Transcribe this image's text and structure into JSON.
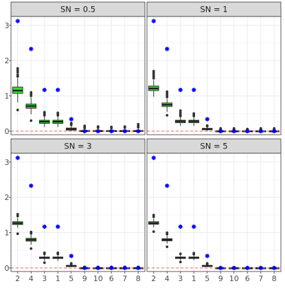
{
  "chart_data": {
    "type": "boxplot",
    "facet_variable": "SN",
    "categories": [
      "2",
      "4",
      "3",
      "1",
      "5",
      "9",
      "10",
      "6",
      "7",
      "8"
    ],
    "ylim": [
      -0.1,
      3.25
    ],
    "yticks": [
      0,
      1,
      2,
      3
    ],
    "reference_line": {
      "y": 0,
      "color": "#ff6060",
      "style": "dashed"
    },
    "colors": {
      "box_highlight": "#33dd33",
      "box_default": "#ffffff",
      "true_value_marker": "#0000ff",
      "outlier": "#333333",
      "strip_bg": "#d9d9d9",
      "grid": "#ebebeb"
    },
    "highlight_categories": [
      "2",
      "4",
      "3",
      "1"
    ],
    "true_values": [
      3.12,
      2.33,
      1.17,
      1.17,
      0.34,
      0.0,
      0.0,
      0.0,
      0.0,
      0.0
    ],
    "panels": [
      {
        "strip": "SN =  0.5",
        "boxes": [
          {
            "q1": 1.07,
            "median": 1.15,
            "q3": 1.25,
            "wlow": 0.82,
            "whigh": 1.5,
            "outliers": [
              0.6,
              1.55,
              1.6,
              1.67,
              1.72,
              1.78
            ]
          },
          {
            "q1": 0.65,
            "median": 0.71,
            "q3": 0.77,
            "wlow": 0.48,
            "whigh": 0.95,
            "outliers": [
              0.3,
              1.0,
              1.05,
              1.1
            ]
          },
          {
            "q1": 0.22,
            "median": 0.27,
            "q3": 0.31,
            "wlow": 0.12,
            "whigh": 0.42,
            "outliers": [
              0.45,
              0.48,
              0.51,
              0.54
            ]
          },
          {
            "q1": 0.22,
            "median": 0.27,
            "q3": 0.31,
            "wlow": 0.12,
            "whigh": 0.42,
            "outliers": [
              0.45,
              0.48,
              0.52
            ]
          },
          {
            "q1": 0.03,
            "median": 0.06,
            "q3": 0.09,
            "wlow": 0.0,
            "whigh": 0.15,
            "outliers": [
              0.18,
              0.2,
              0.23
            ]
          },
          {
            "q1": 0.0,
            "median": 0.0,
            "q3": 0.02,
            "wlow": 0.0,
            "whigh": 0.07,
            "outliers": [
              0.09,
              0.12,
              0.15
            ]
          },
          {
            "q1": 0.0,
            "median": 0.0,
            "q3": 0.02,
            "wlow": 0.0,
            "whigh": 0.07,
            "outliers": [
              0.1,
              0.13
            ]
          },
          {
            "q1": 0.0,
            "median": 0.0,
            "q3": 0.02,
            "wlow": 0.0,
            "whigh": 0.07,
            "outliers": [
              0.09,
              0.12
            ]
          },
          {
            "q1": 0.0,
            "median": 0.0,
            "q3": 0.02,
            "wlow": 0.0,
            "whigh": 0.07,
            "outliers": [
              0.1,
              0.13
            ]
          },
          {
            "q1": 0.0,
            "median": 0.0,
            "q3": 0.02,
            "wlow": 0.0,
            "whigh": 0.07,
            "outliers": [
              0.11,
              0.15,
              0.2
            ]
          }
        ]
      },
      {
        "strip": "SN = 1",
        "boxes": [
          {
            "q1": 1.15,
            "median": 1.21,
            "q3": 1.28,
            "wlow": 0.98,
            "whigh": 1.45,
            "outliers": [
              1.5,
              1.55,
              1.6,
              1.65,
              1.7
            ]
          },
          {
            "q1": 0.7,
            "median": 0.75,
            "q3": 0.8,
            "wlow": 0.55,
            "whigh": 0.92,
            "outliers": [
              0.45,
              0.97,
              1.02,
              1.07,
              1.12
            ]
          },
          {
            "q1": 0.24,
            "median": 0.28,
            "q3": 0.31,
            "wlow": 0.15,
            "whigh": 0.4,
            "outliers": [
              0.43,
              0.47,
              0.52,
              0.58
            ]
          },
          {
            "q1": 0.24,
            "median": 0.28,
            "q3": 0.31,
            "wlow": 0.15,
            "whigh": 0.4,
            "outliers": [
              0.43,
              0.46,
              0.5
            ]
          },
          {
            "q1": 0.04,
            "median": 0.06,
            "q3": 0.08,
            "wlow": 0.0,
            "whigh": 0.12,
            "outliers": [
              0.14,
              0.16
            ]
          },
          {
            "q1": 0.0,
            "median": 0.0,
            "q3": 0.01,
            "wlow": 0.0,
            "whigh": 0.04,
            "outliers": [
              0.06,
              0.08
            ]
          },
          {
            "q1": 0.0,
            "median": 0.0,
            "q3": 0.01,
            "wlow": 0.0,
            "whigh": 0.04,
            "outliers": [
              0.06,
              0.08
            ]
          },
          {
            "q1": 0.0,
            "median": 0.0,
            "q3": 0.01,
            "wlow": 0.0,
            "whigh": 0.04,
            "outliers": [
              0.06
            ]
          },
          {
            "q1": 0.0,
            "median": 0.0,
            "q3": 0.01,
            "wlow": 0.0,
            "whigh": 0.04,
            "outliers": [
              0.06,
              0.08
            ]
          },
          {
            "q1": 0.0,
            "median": 0.0,
            "q3": 0.01,
            "wlow": 0.0,
            "whigh": 0.04,
            "outliers": [
              0.06,
              0.08
            ]
          }
        ]
      },
      {
        "strip": "SN = 3",
        "boxes": [
          {
            "q1": 1.23,
            "median": 1.27,
            "q3": 1.31,
            "wlow": 1.14,
            "whigh": 1.42,
            "outliers": [
              0.97,
              1.47,
              1.52
            ]
          },
          {
            "q1": 0.76,
            "median": 0.8,
            "q3": 0.84,
            "wlow": 0.66,
            "whigh": 0.94,
            "outliers": [
              0.55,
              0.98,
              1.02
            ]
          },
          {
            "q1": 0.27,
            "median": 0.29,
            "q3": 0.31,
            "wlow": 0.2,
            "whigh": 0.37,
            "outliers": [
              0.15,
              0.4,
              0.43
            ]
          },
          {
            "q1": 0.27,
            "median": 0.29,
            "q3": 0.31,
            "wlow": 0.2,
            "whigh": 0.37,
            "outliers": [
              0.4,
              0.43
            ]
          },
          {
            "q1": 0.05,
            "median": 0.06,
            "q3": 0.07,
            "wlow": 0.03,
            "whigh": 0.09,
            "outliers": [
              0.11,
              0.13
            ]
          },
          {
            "q1": 0.0,
            "median": 0.0,
            "q3": 0.005,
            "wlow": 0.0,
            "whigh": 0.015,
            "outliers": [
              0.03
            ]
          },
          {
            "q1": 0.0,
            "median": 0.0,
            "q3": 0.005,
            "wlow": 0.0,
            "whigh": 0.015,
            "outliers": [
              0.03
            ]
          },
          {
            "q1": 0.0,
            "median": 0.0,
            "q3": 0.005,
            "wlow": 0.0,
            "whigh": 0.015,
            "outliers": [
              0.03
            ]
          },
          {
            "q1": 0.0,
            "median": 0.0,
            "q3": 0.005,
            "wlow": 0.0,
            "whigh": 0.015,
            "outliers": [
              0.03
            ]
          },
          {
            "q1": 0.0,
            "median": 0.0,
            "q3": 0.005,
            "wlow": 0.0,
            "whigh": 0.015,
            "outliers": [
              0.03
            ]
          }
        ]
      },
      {
        "strip": "SN = 5",
        "boxes": [
          {
            "q1": 1.24,
            "median": 1.27,
            "q3": 1.31,
            "wlow": 1.15,
            "whigh": 1.4,
            "outliers": [
              1.03,
              1.45,
              1.5
            ]
          },
          {
            "q1": 0.77,
            "median": 0.8,
            "q3": 0.83,
            "wlow": 0.69,
            "whigh": 0.92,
            "outliers": [
              0.6,
              0.96,
              1.0
            ]
          },
          {
            "q1": 0.27,
            "median": 0.29,
            "q3": 0.31,
            "wlow": 0.22,
            "whigh": 0.36,
            "outliers": [
              0.17,
              0.4
            ]
          },
          {
            "q1": 0.27,
            "median": 0.29,
            "q3": 0.31,
            "wlow": 0.22,
            "whigh": 0.36,
            "outliers": [
              0.39,
              0.42
            ]
          },
          {
            "q1": 0.05,
            "median": 0.06,
            "q3": 0.07,
            "wlow": 0.03,
            "whigh": 0.09,
            "outliers": [
              0.11,
              0.13
            ]
          },
          {
            "q1": 0.0,
            "median": 0.0,
            "q3": 0.004,
            "wlow": 0.0,
            "whigh": 0.012,
            "outliers": [
              0.02
            ]
          },
          {
            "q1": 0.0,
            "median": 0.0,
            "q3": 0.004,
            "wlow": 0.0,
            "whigh": 0.012,
            "outliers": [
              0.02
            ]
          },
          {
            "q1": 0.0,
            "median": 0.0,
            "q3": 0.004,
            "wlow": 0.0,
            "whigh": 0.012,
            "outliers": [
              0.02
            ]
          },
          {
            "q1": 0.0,
            "median": 0.0,
            "q3": 0.004,
            "wlow": 0.0,
            "whigh": 0.012,
            "outliers": [
              0.02
            ]
          },
          {
            "q1": 0.0,
            "median": 0.0,
            "q3": 0.004,
            "wlow": 0.0,
            "whigh": 0.012,
            "outliers": [
              0.02
            ]
          }
        ]
      }
    ]
  }
}
